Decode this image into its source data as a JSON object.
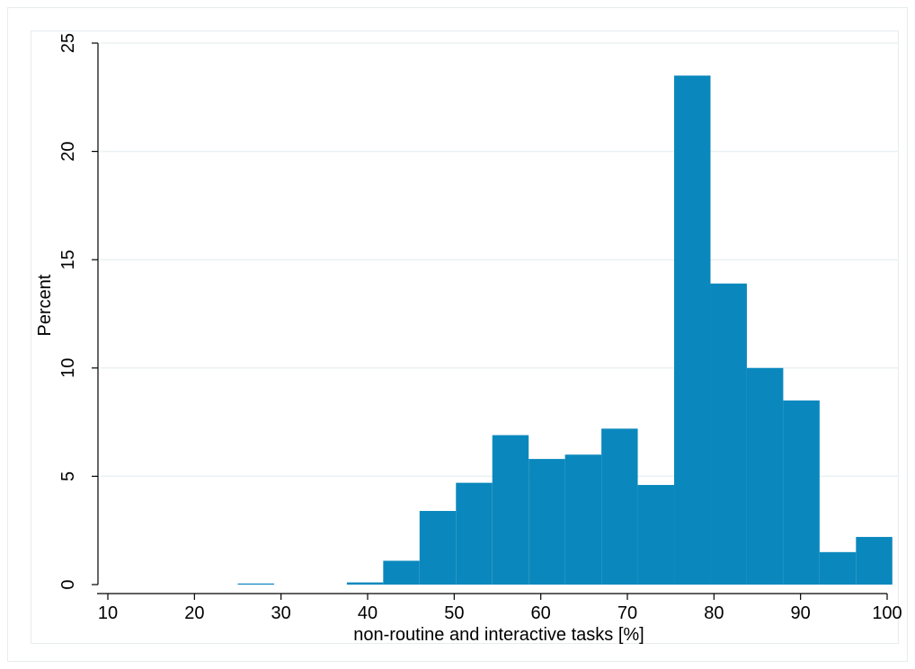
{
  "chart_data": {
    "type": "bar",
    "title": "",
    "xlabel": "non-routine and interactive tasks [%]",
    "ylabel": "Percent",
    "xlim": [
      10,
      100
    ],
    "ylim": [
      0,
      25
    ],
    "xticks": [
      10,
      20,
      30,
      40,
      50,
      60,
      70,
      80,
      90,
      100
    ],
    "yticks": [
      0,
      5,
      10,
      15,
      20,
      25
    ],
    "grid": true,
    "legend": "none",
    "bin_width": 4.2,
    "bars": [
      {
        "x0": 25.0,
        "x1": 29.2,
        "value": 0.05
      },
      {
        "x0": 37.6,
        "x1": 41.8,
        "value": 0.1
      },
      {
        "x0": 41.8,
        "x1": 46.0,
        "value": 1.1
      },
      {
        "x0": 46.0,
        "x1": 50.2,
        "value": 3.4
      },
      {
        "x0": 50.2,
        "x1": 54.4,
        "value": 4.7
      },
      {
        "x0": 54.4,
        "x1": 58.6,
        "value": 6.9
      },
      {
        "x0": 58.6,
        "x1": 62.8,
        "value": 5.8
      },
      {
        "x0": 62.8,
        "x1": 67.0,
        "value": 6.0
      },
      {
        "x0": 67.0,
        "x1": 71.2,
        "value": 7.2
      },
      {
        "x0": 71.2,
        "x1": 75.4,
        "value": 4.6
      },
      {
        "x0": 75.4,
        "x1": 79.6,
        "value": 23.5
      },
      {
        "x0": 79.6,
        "x1": 83.8,
        "value": 13.9
      },
      {
        "x0": 83.8,
        "x1": 88.0,
        "value": 10.0
      },
      {
        "x0": 88.0,
        "x1": 92.2,
        "value": 8.5
      },
      {
        "x0": 92.2,
        "x1": 96.4,
        "value": 1.5
      },
      {
        "x0": 96.4,
        "x1": 100.6,
        "value": 2.2
      }
    ],
    "colors": {
      "bar": "#0a88bd",
      "grid": "#eaf0f2",
      "axis": "#000000"
    }
  }
}
